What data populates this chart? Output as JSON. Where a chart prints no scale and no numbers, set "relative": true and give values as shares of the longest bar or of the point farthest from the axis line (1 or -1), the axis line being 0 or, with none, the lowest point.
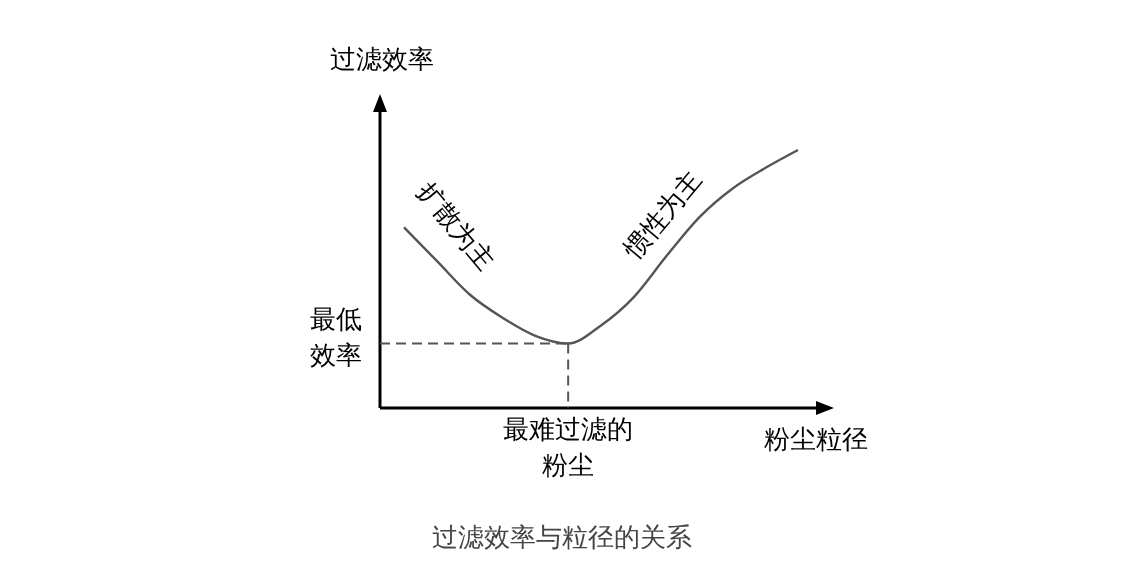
{
  "chart_data": {
    "type": "line",
    "relative": true,
    "title": "过滤效率与粒径的关系",
    "ylabel": "过滤效率",
    "xlabel": "粉尘粒径",
    "categories": [
      null,
      null,
      null,
      null,
      null,
      null,
      null,
      null,
      null,
      null,
      null,
      null,
      null
    ],
    "series": [
      {
        "color": "#555555",
        "values": [
          0.7,
          0.57,
          0.44,
          0.35,
          0.28,
          0.25,
          0.32,
          0.43,
          0.59,
          0.74,
          0.85,
          0.93,
          1.0
        ]
      }
    ],
    "marker": "none",
    "annotations": [
      "最低效率",
      "最难过滤的粉尘",
      "扩散为主",
      "惯性为主"
    ]
  }
}
